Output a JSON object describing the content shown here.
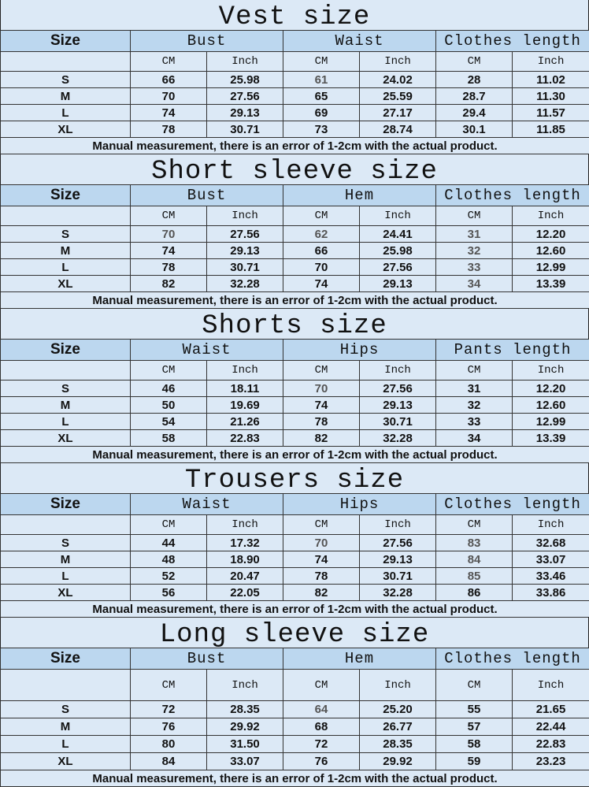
{
  "unit_labels": {
    "cm": "CM",
    "inch": "Inch"
  },
  "size_label": "Size",
  "note": "Manual measurement, there is an error of 1-2cm with the actual product.",
  "colors": {
    "background": "#dce9f6",
    "header": "#bcd7ef",
    "muted_text": "#555555"
  },
  "sections": [
    {
      "title": "Vest size",
      "columns": [
        "Bust",
        "Waist",
        "Clothes length"
      ],
      "rows": [
        [
          "S",
          "66",
          "25.98",
          "61",
          "24.02",
          "28",
          "11.02"
        ],
        [
          "M",
          "70",
          "27.56",
          "65",
          "25.59",
          "28.7",
          "11.30"
        ],
        [
          "L",
          "74",
          "29.13",
          "69",
          "27.17",
          "29.4",
          "11.57"
        ],
        [
          "XL",
          "78",
          "30.71",
          "73",
          "28.74",
          "30.1",
          "11.85"
        ]
      ],
      "muted_cells": [
        [
          0,
          3
        ]
      ]
    },
    {
      "title": "Short sleeve size",
      "columns": [
        "Bust",
        "Hem",
        "Clothes length"
      ],
      "rows": [
        [
          "S",
          "70",
          "27.56",
          "62",
          "24.41",
          "31",
          "12.20"
        ],
        [
          "M",
          "74",
          "29.13",
          "66",
          "25.98",
          "32",
          "12.60"
        ],
        [
          "L",
          "78",
          "30.71",
          "70",
          "27.56",
          "33",
          "12.99"
        ],
        [
          "XL",
          "82",
          "32.28",
          "74",
          "29.13",
          "34",
          "13.39"
        ]
      ],
      "muted_cells": [
        [
          0,
          1
        ],
        [
          0,
          3
        ],
        [
          0,
          5
        ],
        [
          1,
          5
        ],
        [
          2,
          5
        ],
        [
          3,
          5
        ]
      ]
    },
    {
      "title": "Shorts size",
      "columns": [
        "Waist",
        "Hips",
        "Pants length"
      ],
      "rows": [
        [
          "S",
          "46",
          "18.11",
          "70",
          "27.56",
          "31",
          "12.20"
        ],
        [
          "M",
          "50",
          "19.69",
          "74",
          "29.13",
          "32",
          "12.60"
        ],
        [
          "L",
          "54",
          "21.26",
          "78",
          "30.71",
          "33",
          "12.99"
        ],
        [
          "XL",
          "58",
          "22.83",
          "82",
          "32.28",
          "34",
          "13.39"
        ]
      ],
      "muted_cells": [
        [
          0,
          3
        ]
      ]
    },
    {
      "title": "Trousers size",
      "columns": [
        "Waist",
        "Hips",
        "Clothes length"
      ],
      "rows": [
        [
          "S",
          "44",
          "17.32",
          "70",
          "27.56",
          "83",
          "32.68"
        ],
        [
          "M",
          "48",
          "18.90",
          "74",
          "29.13",
          "84",
          "33.07"
        ],
        [
          "L",
          "52",
          "20.47",
          "78",
          "30.71",
          "85",
          "33.46"
        ],
        [
          "XL",
          "56",
          "22.05",
          "82",
          "32.28",
          "86",
          "33.86"
        ]
      ],
      "muted_cells": [
        [
          0,
          3
        ],
        [
          0,
          5
        ],
        [
          1,
          5
        ],
        [
          2,
          5
        ]
      ]
    },
    {
      "title": "Long sleeve size",
      "columns": [
        "Bust",
        "Hem",
        "Clothes length"
      ],
      "rows": [
        [
          "S",
          "72",
          "28.35",
          "64",
          "25.20",
          "55",
          "21.65"
        ],
        [
          "M",
          "76",
          "29.92",
          "68",
          "26.77",
          "57",
          "22.44"
        ],
        [
          "L",
          "80",
          "31.50",
          "72",
          "28.35",
          "58",
          "22.83"
        ],
        [
          "XL",
          "84",
          "33.07",
          "76",
          "29.92",
          "59",
          "23.23"
        ]
      ],
      "muted_cells": [
        [
          0,
          3
        ]
      ]
    }
  ]
}
